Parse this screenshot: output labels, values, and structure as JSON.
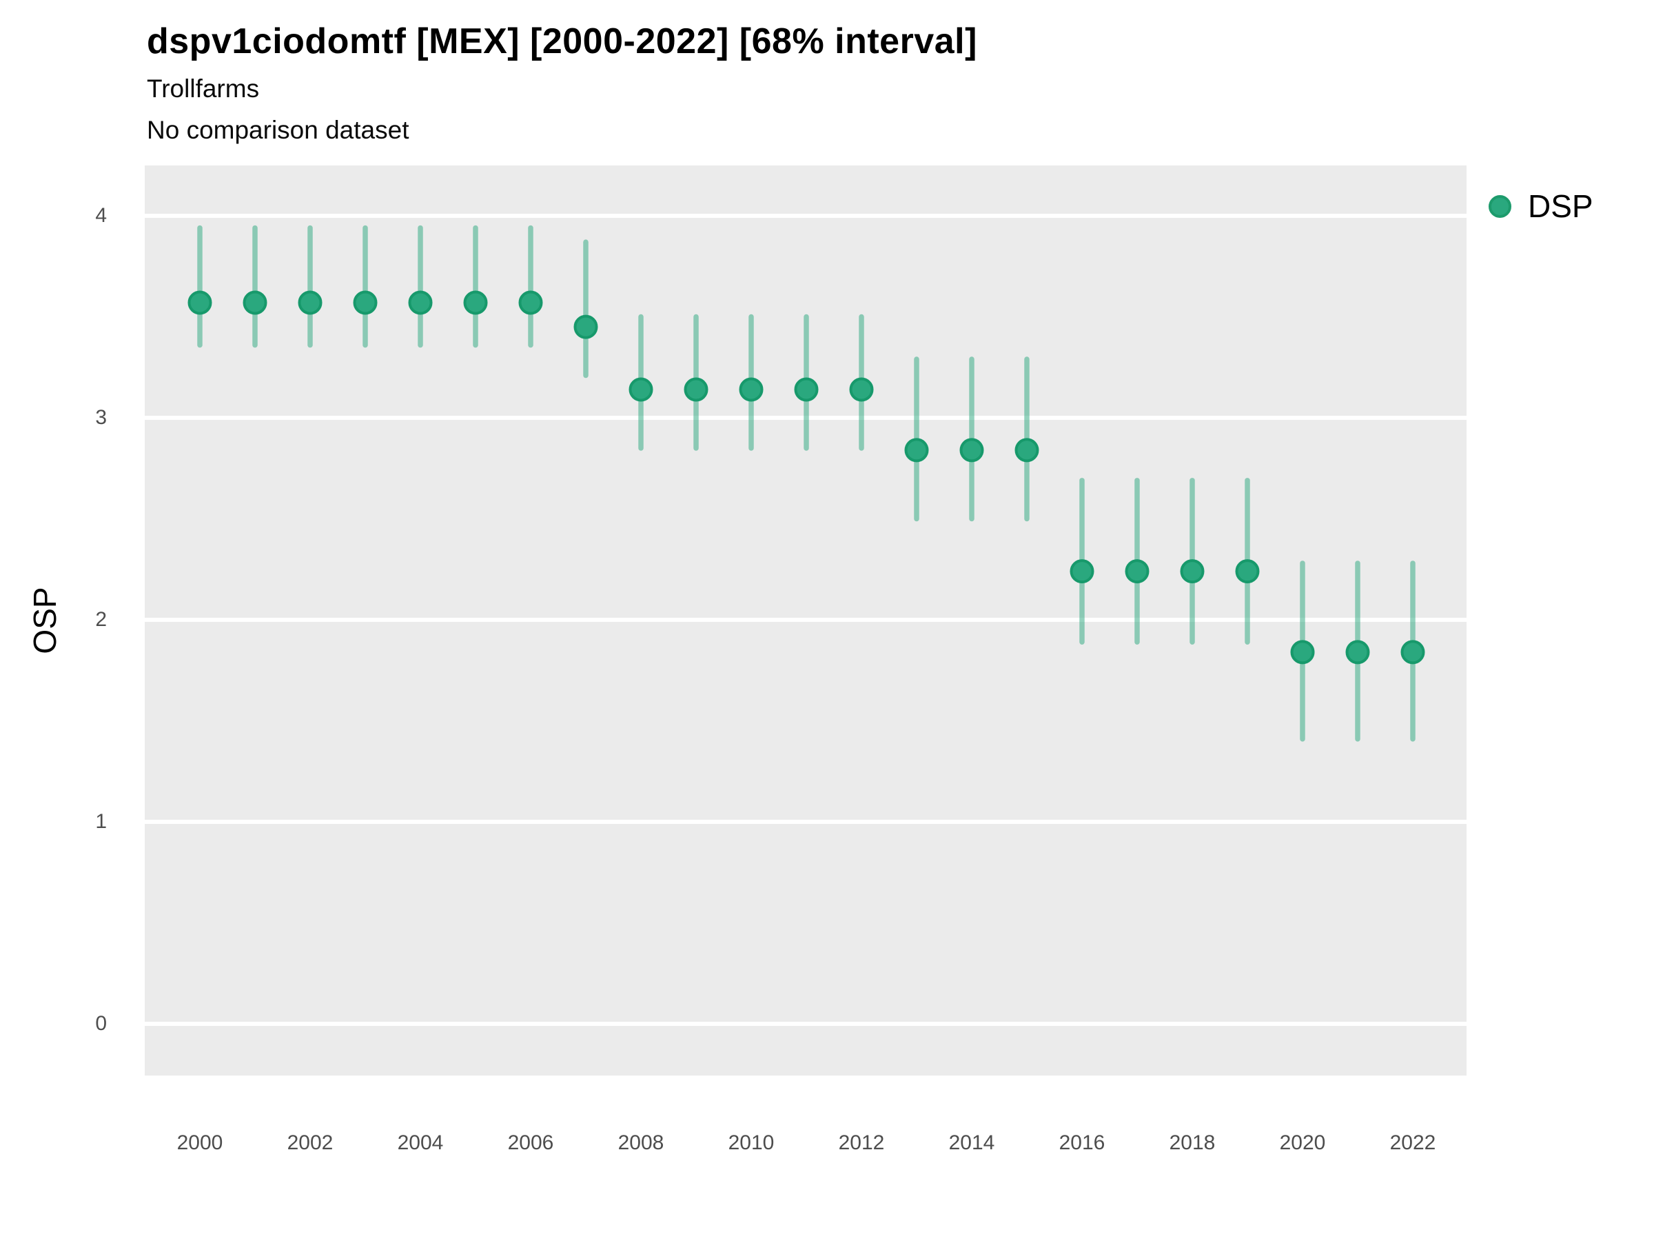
{
  "header": {
    "title": "dspv1ciodomtf [MEX] [2000-2022] [68% interval]",
    "subtitle1": "Trollfarms",
    "subtitle2": "No comparison dataset"
  },
  "legend": {
    "items": [
      {
        "label": "DSP",
        "marker": "circle",
        "color": "#2aa87e"
      }
    ],
    "position": "right"
  },
  "chart_data": {
    "type": "scatter",
    "variant": "pointrange (point with 68% interval bars)",
    "title": "dspv1ciodomtf [MEX] [2000-2022] [68% interval]",
    "subtitle": [
      "Trollfarms",
      "No comparison dataset"
    ],
    "xlabel": "",
    "ylabel": "OSP",
    "interval_label": "68% interval",
    "x": [
      2000,
      2001,
      2002,
      2003,
      2004,
      2005,
      2006,
      2007,
      2008,
      2009,
      2010,
      2011,
      2012,
      2013,
      2014,
      2015,
      2016,
      2017,
      2018,
      2019,
      2020,
      2021,
      2022
    ],
    "series": [
      {
        "name": "DSP",
        "point_color": "#2aa87e",
        "point_stroke": "#17996b",
        "bar_color_rgba": "rgba(42,168,126,0.5)",
        "values": [
          3.57,
          3.57,
          3.57,
          3.57,
          3.57,
          3.57,
          3.57,
          3.45,
          3.14,
          3.14,
          3.14,
          3.14,
          3.14,
          2.84,
          2.84,
          2.84,
          2.24,
          2.24,
          2.24,
          2.24,
          1.84,
          1.84,
          1.84
        ],
        "lower": [
          3.36,
          3.36,
          3.36,
          3.36,
          3.36,
          3.36,
          3.36,
          3.21,
          2.85,
          2.85,
          2.85,
          2.85,
          2.85,
          2.5,
          2.5,
          2.5,
          1.89,
          1.89,
          1.89,
          1.89,
          1.41,
          1.41,
          1.41
        ],
        "upper": [
          3.94,
          3.94,
          3.94,
          3.94,
          3.94,
          3.94,
          3.94,
          3.87,
          3.5,
          3.5,
          3.5,
          3.5,
          3.5,
          3.29,
          3.29,
          3.29,
          2.69,
          2.69,
          2.69,
          2.69,
          2.28,
          2.28,
          2.28
        ]
      }
    ],
    "ylim": [
      -0.26,
      4.25
    ],
    "yticks": [
      0,
      1,
      2,
      3,
      4
    ],
    "xticks": [
      2000,
      2002,
      2004,
      2006,
      2008,
      2010,
      2012,
      2014,
      2016,
      2018,
      2020,
      2022
    ],
    "grid": "horizontal major gridlines only, white on light-gray panel",
    "panel_background": "#ebebeb",
    "gridline_color": "#ffffff",
    "legend_position": "right"
  }
}
